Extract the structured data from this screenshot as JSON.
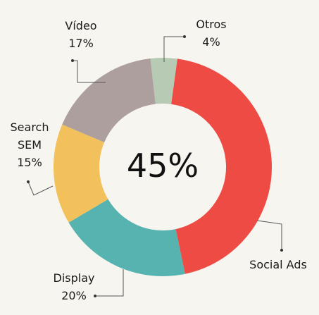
{
  "chart_data": {
    "type": "donut",
    "categories": [
      "Otros",
      "Social Ads",
      "Display",
      "Search SEM",
      "Vídeo"
    ],
    "values": [
      4,
      45,
      20,
      15,
      17
    ],
    "value_labels": [
      "4%",
      "45%",
      "20%",
      "15%",
      "17%"
    ],
    "colors": [
      "#b7cab3",
      "#ee4b45",
      "#56b3b0",
      "#f2c15b",
      "#ad9f9e"
    ]
  }
}
